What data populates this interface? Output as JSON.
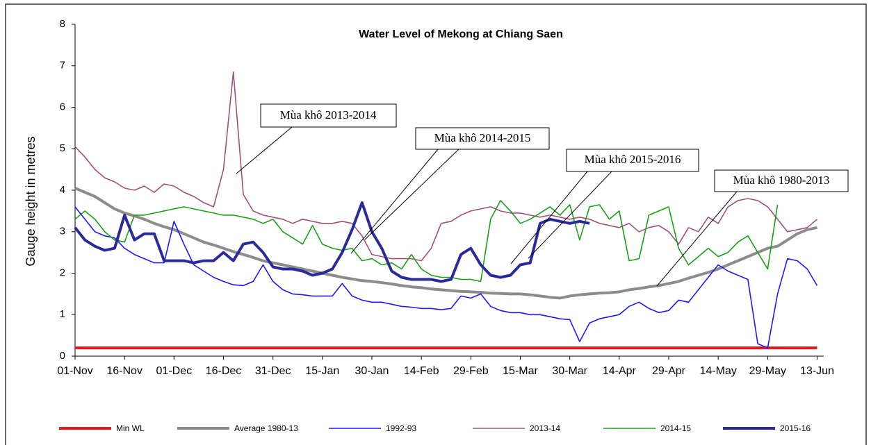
{
  "chart_data": {
    "type": "line",
    "title": "Water Level of Mekong at Chiang Saen",
    "y_label": "Gauge height in metres",
    "annotations": [
      "Mùa khô 2013-2014",
      "Mùa khô 2014-2015",
      "Mùa khô 2015-2016",
      "Mùa khô 1980-2013"
    ],
    "xlim": [
      0,
      227
    ],
    "xticks": [
      {
        "value": 0,
        "label": "01-Nov"
      },
      {
        "value": 15,
        "label": "16-Nov"
      },
      {
        "value": 30,
        "label": "01-Dec"
      },
      {
        "value": 45,
        "label": "16-Dec"
      },
      {
        "value": 60,
        "label": "31-Dec"
      },
      {
        "value": 75,
        "label": "15-Jan"
      },
      {
        "value": 90,
        "label": "30-Jan"
      },
      {
        "value": 105,
        "label": "14-Feb"
      },
      {
        "value": 120,
        "label": "29-Feb"
      },
      {
        "value": 135,
        "label": "15-Mar"
      },
      {
        "value": 150,
        "label": "30-Mar"
      },
      {
        "value": 165,
        "label": "14-Apr"
      },
      {
        "value": 180,
        "label": "29-Apr"
      },
      {
        "value": 195,
        "label": "14-May"
      },
      {
        "value": 210,
        "label": "29-May"
      },
      {
        "value": 225,
        "label": "13-Jun"
      }
    ],
    "ylim": [
      0,
      8
    ],
    "yticks": [
      0,
      1,
      2,
      3,
      4,
      5,
      6,
      7,
      8
    ],
    "x": [
      0,
      3,
      6,
      9,
      12,
      15,
      18,
      21,
      24,
      27,
      30,
      33,
      36,
      39,
      42,
      45,
      48,
      51,
      54,
      57,
      60,
      63,
      66,
      69,
      72,
      75,
      78,
      81,
      84,
      87,
      90,
      93,
      96,
      99,
      102,
      105,
      108,
      111,
      114,
      117,
      120,
      123,
      126,
      129,
      132,
      135,
      138,
      141,
      144,
      147,
      150,
      153,
      156,
      159,
      162,
      165,
      168,
      171,
      174,
      177,
      180,
      183,
      186,
      189,
      192,
      195,
      198,
      201,
      204,
      207,
      210,
      213,
      216,
      219,
      222,
      225
    ],
    "series": [
      {
        "name": "Min WL",
        "color": "#e8191c",
        "width": 4,
        "values": [
          0.2,
          0.2,
          0.2,
          0.2,
          0.2,
          0.2,
          0.2,
          0.2,
          0.2,
          0.2,
          0.2,
          0.2,
          0.2,
          0.2,
          0.2,
          0.2,
          0.2,
          0.2,
          0.2,
          0.2,
          0.2,
          0.2,
          0.2,
          0.2,
          0.2,
          0.2,
          0.2,
          0.2,
          0.2,
          0.2,
          0.2,
          0.2,
          0.2,
          0.2,
          0.2,
          0.2,
          0.2,
          0.2,
          0.2,
          0.2,
          0.2,
          0.2,
          0.2,
          0.2,
          0.2,
          0.2,
          0.2,
          0.2,
          0.2,
          0.2,
          0.2,
          0.2,
          0.2,
          0.2,
          0.2,
          0.2,
          0.2,
          0.2,
          0.2,
          0.2,
          0.2,
          0.2,
          0.2,
          0.2,
          0.2,
          0.2,
          0.2,
          0.2,
          0.2,
          0.2,
          0.2,
          0.2,
          0.2,
          0.2,
          0.2,
          0.2
        ]
      },
      {
        "name": "Average 1980-13",
        "color": "#8c8c8c",
        "width": 4,
        "values": [
          4.05,
          3.95,
          3.85,
          3.7,
          3.55,
          3.45,
          3.38,
          3.3,
          3.2,
          3.12,
          3.05,
          2.95,
          2.85,
          2.75,
          2.68,
          2.6,
          2.52,
          2.45,
          2.38,
          2.3,
          2.25,
          2.2,
          2.15,
          2.1,
          2.05,
          2.0,
          1.95,
          1.9,
          1.86,
          1.82,
          1.8,
          1.77,
          1.74,
          1.7,
          1.67,
          1.65,
          1.62,
          1.6,
          1.58,
          1.56,
          1.55,
          1.54,
          1.52,
          1.51,
          1.5,
          1.5,
          1.48,
          1.45,
          1.42,
          1.4,
          1.45,
          1.48,
          1.5,
          1.52,
          1.53,
          1.55,
          1.6,
          1.63,
          1.67,
          1.7,
          1.75,
          1.8,
          1.88,
          1.95,
          2.02,
          2.1,
          2.2,
          2.3,
          2.4,
          2.5,
          2.6,
          2.65,
          2.8,
          2.95,
          3.05,
          3.1
        ]
      },
      {
        "name": "1992-93",
        "color": "#1a1aff",
        "width": 1.6,
        "values": [
          3.6,
          3.3,
          3.0,
          2.9,
          2.85,
          2.6,
          2.45,
          2.35,
          2.25,
          2.25,
          3.25,
          2.7,
          2.2,
          2.05,
          1.9,
          1.8,
          1.72,
          1.7,
          1.8,
          2.2,
          1.8,
          1.6,
          1.5,
          1.48,
          1.45,
          1.45,
          1.45,
          1.75,
          1.45,
          1.35,
          1.3,
          1.3,
          1.25,
          1.2,
          1.18,
          1.15,
          1.15,
          1.12,
          1.15,
          1.45,
          1.4,
          1.5,
          1.2,
          1.1,
          1.05,
          1.05,
          1.0,
          1.0,
          0.95,
          0.9,
          0.88,
          0.35,
          0.8,
          0.9,
          0.95,
          1.0,
          1.2,
          1.3,
          1.15,
          1.05,
          1.1,
          1.35,
          1.3,
          1.6,
          1.9,
          2.2,
          2.05,
          1.95,
          1.85,
          0.3,
          0.2,
          1.5,
          2.35,
          2.3,
          2.1,
          1.7
        ]
      },
      {
        "name": "2013-14",
        "color": "#a0507a",
        "width": 1.6,
        "values": [
          5.05,
          4.8,
          4.5,
          4.3,
          4.2,
          4.05,
          4.0,
          4.1,
          3.95,
          4.15,
          4.1,
          3.95,
          3.85,
          3.7,
          3.6,
          4.5,
          6.85,
          3.9,
          3.5,
          3.4,
          3.35,
          3.3,
          3.2,
          3.3,
          3.25,
          3.2,
          3.2,
          3.25,
          3.2,
          2.9,
          2.45,
          2.4,
          2.35,
          2.35,
          2.35,
          2.3,
          2.6,
          3.2,
          3.25,
          3.4,
          3.5,
          3.55,
          3.6,
          3.5,
          3.45,
          3.45,
          3.4,
          3.35,
          3.4,
          3.35,
          3.3,
          3.35,
          3.3,
          3.2,
          3.15,
          3.1,
          3.2,
          3.0,
          3.1,
          3.15,
          3.0,
          2.7,
          3.1,
          3.0,
          3.35,
          3.2,
          3.6,
          3.75,
          3.8,
          3.75,
          3.6,
          3.3,
          3.0,
          3.05,
          3.1,
          3.3
        ]
      },
      {
        "name": "2014-15",
        "color": "#18a018",
        "width": 1.6,
        "values": [
          3.3,
          3.5,
          3.3,
          3.0,
          2.8,
          2.75,
          3.4,
          3.4,
          3.45,
          3.5,
          3.55,
          3.6,
          3.55,
          3.5,
          3.45,
          3.4,
          3.4,
          3.35,
          3.3,
          3.2,
          3.3,
          3.0,
          2.85,
          2.7,
          3.15,
          2.7,
          2.6,
          2.55,
          2.6,
          2.3,
          2.35,
          2.2,
          2.25,
          2.1,
          2.45,
          2.1,
          1.95,
          1.9,
          1.9,
          1.85,
          1.85,
          1.8,
          3.3,
          3.75,
          3.5,
          3.2,
          3.3,
          3.45,
          3.6,
          3.4,
          3.65,
          2.8,
          3.6,
          3.65,
          3.3,
          3.5,
          2.3,
          2.35,
          3.4,
          3.5,
          3.6,
          2.6,
          2.2,
          2.4,
          2.6,
          2.4,
          2.5,
          2.75,
          2.9,
          2.5,
          2.1,
          3.65,
          null,
          null,
          null,
          null
        ]
      },
      {
        "name": "2015-16",
        "color": "#2a2a9a",
        "width": 4,
        "values": [
          3.1,
          2.8,
          2.65,
          2.55,
          2.6,
          3.4,
          2.8,
          2.95,
          2.95,
          2.3,
          2.3,
          2.3,
          2.25,
          2.3,
          2.3,
          2.5,
          2.3,
          2.7,
          2.75,
          2.5,
          2.15,
          2.1,
          2.1,
          2.05,
          1.95,
          2.0,
          2.1,
          2.5,
          3.05,
          3.7,
          3.0,
          2.6,
          2.05,
          1.9,
          1.85,
          1.85,
          1.85,
          1.8,
          1.85,
          2.45,
          2.6,
          2.2,
          1.95,
          1.9,
          1.95,
          2.2,
          2.25,
          3.2,
          3.3,
          3.25,
          3.2,
          3.25,
          3.2,
          null,
          null,
          null,
          null,
          null,
          null,
          null,
          null,
          null,
          null,
          null,
          null,
          null,
          null,
          null,
          null,
          null,
          null,
          null,
          null,
          null,
          null,
          null
        ]
      }
    ]
  }
}
